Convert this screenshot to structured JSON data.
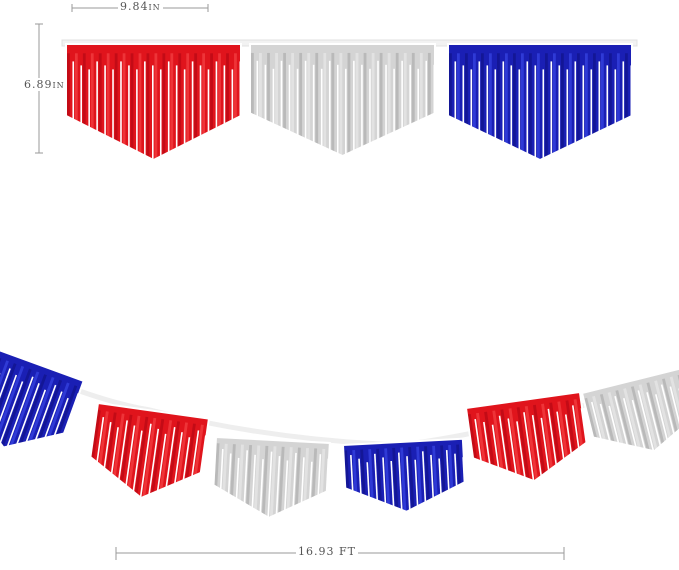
{
  "dimensions": {
    "width_label": "9.84",
    "width_unit": "IN",
    "height_label": "6.89",
    "height_unit": "IN",
    "length_label": "16.93 FT"
  },
  "colors": {
    "red": "#e0141c",
    "silver": "#d4d4d4",
    "blue": "#1a1fb4",
    "guide": "#9a9a9a"
  },
  "pennant_sequence_top": [
    "red",
    "silver",
    "blue"
  ],
  "pennant_sequence_bottom": [
    "blue",
    "red",
    "silver",
    "blue",
    "red",
    "silver"
  ]
}
